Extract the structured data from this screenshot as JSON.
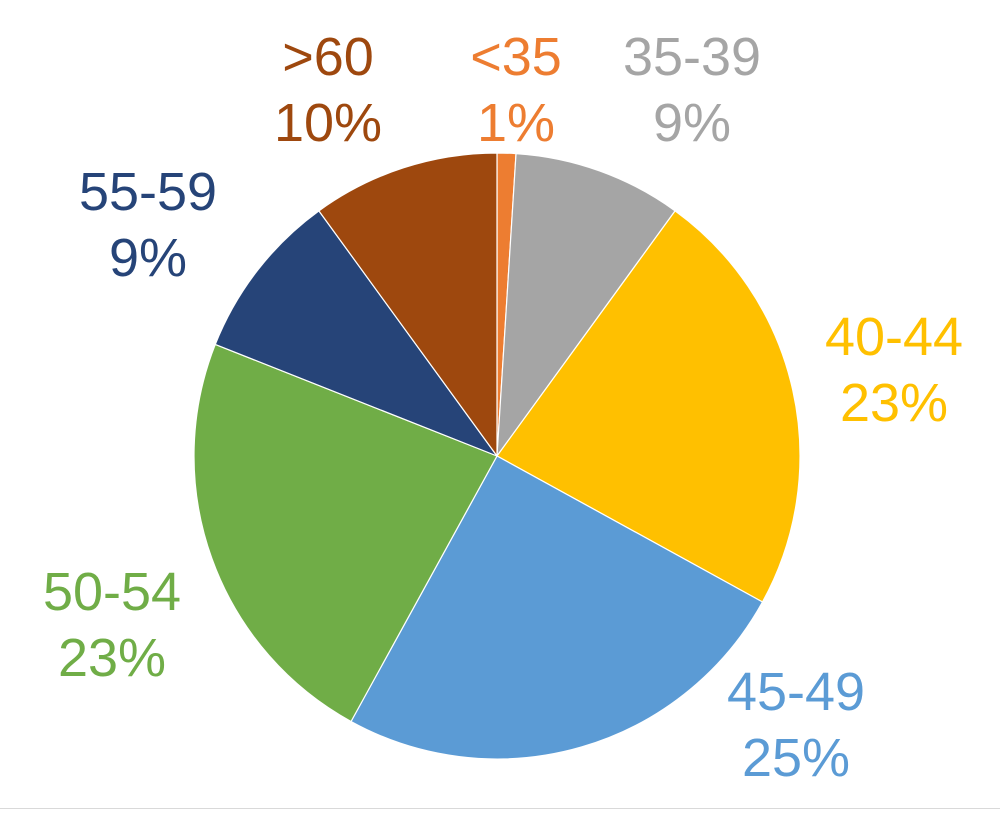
{
  "chart_data": {
    "type": "pie",
    "title": "",
    "start_angle_deg": 0,
    "direction": "clockwise",
    "slices": [
      {
        "label": "<35",
        "value": 1,
        "percent_label": "1%",
        "color": "#ED7D31"
      },
      {
        "label": "35-39",
        "value": 9,
        "percent_label": "9%",
        "color": "#A5A5A5"
      },
      {
        "label": "40-44",
        "value": 23,
        "percent_label": "23%",
        "color": "#FFC000"
      },
      {
        "label": "45-49",
        "value": 25,
        "percent_label": "25%",
        "color": "#5B9BD5"
      },
      {
        "label": "50-54",
        "value": 23,
        "percent_label": "23%",
        "color": "#70AD47"
      },
      {
        "label": "55-59",
        "value": 9,
        "percent_label": "9%",
        "color": "#264478"
      },
      {
        "label": ">60",
        "value": 10,
        "percent_label": "10%",
        "color": "#9E480E"
      }
    ],
    "legend": "none",
    "data_labels": "outside"
  }
}
